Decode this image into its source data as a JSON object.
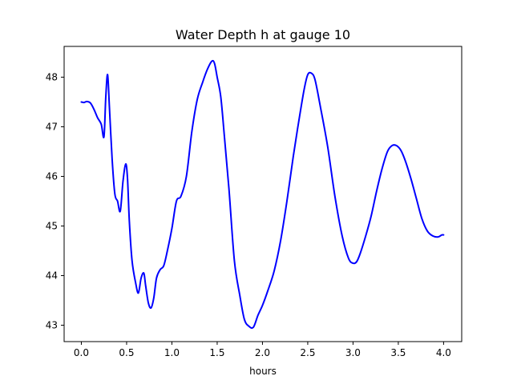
{
  "chart_data": {
    "type": "line",
    "title": "Water Depth h at gauge 10",
    "xlabel": "hours",
    "ylabel": "",
    "xlim": [
      -0.19,
      4.2
    ],
    "ylim": [
      42.67,
      48.62
    ],
    "xticks": [
      0.0,
      0.5,
      1.0,
      1.5,
      2.0,
      2.5,
      3.0,
      3.5,
      4.0
    ],
    "xtick_labels": [
      "0.0",
      "0.5",
      "1.0",
      "1.5",
      "2.0",
      "2.5",
      "3.0",
      "3.5",
      "4.0"
    ],
    "yticks": [
      43,
      44,
      45,
      46,
      47,
      48
    ],
    "ytick_labels": [
      "43",
      "44",
      "45",
      "46",
      "47",
      "48"
    ],
    "grid": false,
    "legend": "none",
    "series": [
      {
        "color": "#0000ff",
        "x": [
          0.0,
          0.03,
          0.06,
          0.1,
          0.14,
          0.18,
          0.22,
          0.25,
          0.27,
          0.29,
          0.31,
          0.34,
          0.37,
          0.4,
          0.43,
          0.46,
          0.49,
          0.51,
          0.53,
          0.56,
          0.6,
          0.63,
          0.66,
          0.69,
          0.71,
          0.74,
          0.77,
          0.8,
          0.83,
          0.87,
          0.91,
          0.95,
          1.0,
          1.05,
          1.1,
          1.16,
          1.22,
          1.28,
          1.34,
          1.39,
          1.44,
          1.47,
          1.5,
          1.54,
          1.58,
          1.63,
          1.69,
          1.75,
          1.8,
          1.85,
          1.9,
          1.95,
          2.0,
          2.06,
          2.13,
          2.2,
          2.27,
          2.34,
          2.4,
          2.46,
          2.5,
          2.54,
          2.58,
          2.64,
          2.72,
          2.8,
          2.88,
          2.95,
          3.0,
          3.04,
          3.08,
          3.14,
          3.2,
          3.26,
          3.32,
          3.38,
          3.43,
          3.48,
          3.53,
          3.58,
          3.64,
          3.7,
          3.76,
          3.82,
          3.88,
          3.94,
          3.98,
          4.0
        ],
        "y": [
          47.5,
          47.49,
          47.51,
          47.48,
          47.35,
          47.18,
          47.05,
          46.8,
          47.6,
          48.05,
          47.4,
          46.35,
          45.65,
          45.5,
          45.3,
          45.9,
          46.25,
          45.95,
          45.1,
          44.3,
          43.85,
          43.65,
          43.95,
          44.05,
          43.8,
          43.45,
          43.35,
          43.55,
          43.95,
          44.12,
          44.2,
          44.5,
          44.95,
          45.5,
          45.6,
          46.0,
          46.9,
          47.55,
          47.9,
          48.15,
          48.32,
          48.28,
          48.0,
          47.6,
          46.8,
          45.75,
          44.3,
          43.6,
          43.12,
          42.98,
          42.96,
          43.2,
          43.4,
          43.7,
          44.1,
          44.7,
          45.5,
          46.4,
          47.1,
          47.75,
          48.05,
          48.08,
          47.95,
          47.4,
          46.6,
          45.6,
          44.8,
          44.35,
          44.25,
          44.28,
          44.45,
          44.8,
          45.2,
          45.7,
          46.15,
          46.5,
          46.62,
          46.62,
          46.52,
          46.3,
          45.95,
          45.55,
          45.15,
          44.9,
          44.8,
          44.78,
          44.82,
          44.82
        ]
      }
    ]
  }
}
